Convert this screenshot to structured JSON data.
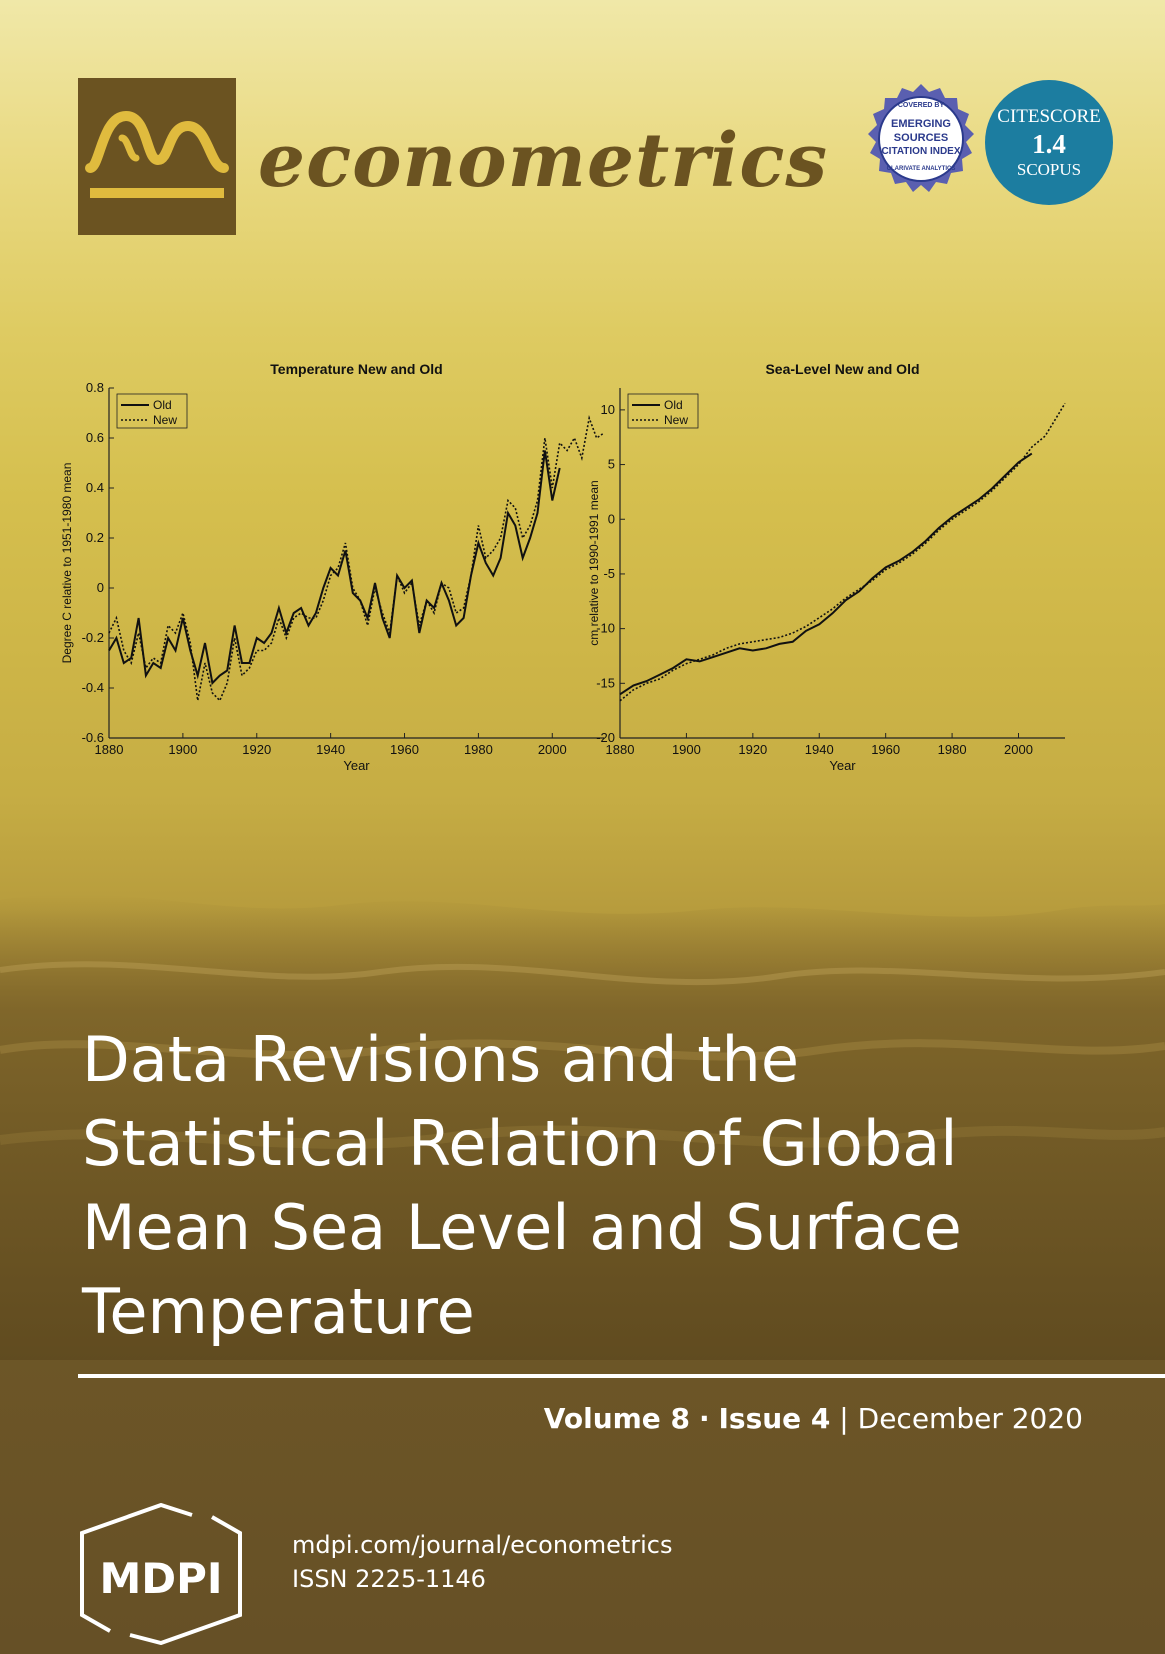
{
  "journal": {
    "name": "econometrics"
  },
  "badges": {
    "esci": {
      "top": "COVERED BY",
      "line1": "EMERGING",
      "line2": "SOURCES",
      "line3": "CITATION INDEX",
      "bottom": "CLARIVATE ANALYTICS"
    },
    "citescore": {
      "label": "CITESCORE",
      "value": "1.4",
      "source": "SCOPUS"
    }
  },
  "chart_data": [
    {
      "type": "line",
      "title": "Temperature New and Old",
      "xlabel": "Year",
      "ylabel": "Degree C relative to 1951-1980 mean",
      "xlim": [
        1880,
        2014
      ],
      "ylim": [
        -0.6,
        0.8
      ],
      "xticks": [
        1880,
        1900,
        1920,
        1940,
        1960,
        1980,
        2000
      ],
      "yticks": [
        -0.6,
        -0.4,
        -0.2,
        0,
        0.2,
        0.4,
        0.6,
        0.8
      ],
      "legend": "top-left",
      "series": [
        {
          "name": "Old",
          "style": "solid",
          "x": [
            1880,
            1882,
            1884,
            1886,
            1888,
            1890,
            1892,
            1894,
            1896,
            1898,
            1900,
            1902,
            1904,
            1906,
            1908,
            1910,
            1912,
            1914,
            1916,
            1918,
            1920,
            1922,
            1924,
            1926,
            1928,
            1930,
            1932,
            1934,
            1936,
            1938,
            1940,
            1942,
            1944,
            1946,
            1948,
            1950,
            1952,
            1954,
            1956,
            1958,
            1960,
            1962,
            1964,
            1966,
            1968,
            1970,
            1972,
            1974,
            1976,
            1978,
            1980,
            1982,
            1984,
            1986,
            1988,
            1990,
            1992,
            1994,
            1996,
            1998,
            2000,
            2002
          ],
          "y": [
            -0.25,
            -0.2,
            -0.3,
            -0.28,
            -0.12,
            -0.35,
            -0.3,
            -0.32,
            -0.2,
            -0.25,
            -0.12,
            -0.25,
            -0.35,
            -0.22,
            -0.38,
            -0.35,
            -0.33,
            -0.15,
            -0.3,
            -0.3,
            -0.2,
            -0.22,
            -0.18,
            -0.08,
            -0.18,
            -0.1,
            -0.08,
            -0.15,
            -0.1,
            0.0,
            0.08,
            0.05,
            0.15,
            -0.02,
            -0.05,
            -0.12,
            0.02,
            -0.12,
            -0.2,
            0.05,
            0.0,
            0.03,
            -0.18,
            -0.05,
            -0.08,
            0.02,
            -0.05,
            -0.15,
            -0.12,
            0.05,
            0.18,
            0.1,
            0.05,
            0.12,
            0.3,
            0.25,
            0.12,
            0.2,
            0.3,
            0.55,
            0.35,
            0.48
          ]
        },
        {
          "name": "New",
          "style": "dotted",
          "x": [
            1880,
            1882,
            1884,
            1886,
            1888,
            1890,
            1892,
            1894,
            1896,
            1898,
            1900,
            1902,
            1904,
            1906,
            1908,
            1910,
            1912,
            1914,
            1916,
            1918,
            1920,
            1922,
            1924,
            1926,
            1928,
            1930,
            1932,
            1934,
            1936,
            1938,
            1940,
            1942,
            1944,
            1946,
            1948,
            1950,
            1952,
            1954,
            1956,
            1958,
            1960,
            1962,
            1964,
            1966,
            1968,
            1970,
            1972,
            1974,
            1976,
            1978,
            1980,
            1982,
            1984,
            1986,
            1988,
            1990,
            1992,
            1994,
            1996,
            1998,
            2000,
            2002,
            2004,
            2006,
            2008,
            2010,
            2012,
            2014
          ],
          "y": [
            -0.18,
            -0.12,
            -0.25,
            -0.3,
            -0.18,
            -0.32,
            -0.28,
            -0.3,
            -0.15,
            -0.18,
            -0.1,
            -0.22,
            -0.45,
            -0.3,
            -0.42,
            -0.45,
            -0.38,
            -0.2,
            -0.35,
            -0.32,
            -0.25,
            -0.25,
            -0.22,
            -0.12,
            -0.2,
            -0.12,
            -0.1,
            -0.12,
            -0.12,
            -0.05,
            0.05,
            0.08,
            0.18,
            0.0,
            -0.05,
            -0.15,
            0.0,
            -0.1,
            -0.18,
            0.05,
            -0.02,
            0.02,
            -0.15,
            -0.05,
            -0.1,
            0.02,
            0.0,
            -0.1,
            -0.08,
            0.05,
            0.25,
            0.12,
            0.15,
            0.2,
            0.35,
            0.32,
            0.2,
            0.25,
            0.35,
            0.6,
            0.4,
            0.58,
            0.55,
            0.6,
            0.52,
            0.68,
            0.6,
            0.62
          ]
        }
      ]
    },
    {
      "type": "line",
      "title": "Sea-Level New and Old",
      "xlabel": "Year",
      "ylabel": "cm relative to 1990-1991 mean",
      "xlim": [
        1880,
        2014
      ],
      "ylim": [
        -20,
        12
      ],
      "xticks": [
        1880,
        1900,
        1920,
        1940,
        1960,
        1980,
        2000
      ],
      "yticks": [
        -20,
        -15,
        -10,
        -5,
        0,
        5,
        10
      ],
      "legend": "top-left",
      "series": [
        {
          "name": "Old",
          "style": "solid",
          "x": [
            1880,
            1884,
            1888,
            1892,
            1896,
            1900,
            1904,
            1908,
            1912,
            1916,
            1920,
            1924,
            1928,
            1932,
            1936,
            1940,
            1944,
            1948,
            1952,
            1956,
            1960,
            1964,
            1968,
            1972,
            1976,
            1980,
            1984,
            1988,
            1992,
            1996,
            2000,
            2004
          ],
          "y": [
            -16.0,
            -15.2,
            -14.8,
            -14.2,
            -13.6,
            -12.8,
            -13.0,
            -12.6,
            -12.2,
            -11.8,
            -12.0,
            -11.8,
            -11.4,
            -11.2,
            -10.2,
            -9.6,
            -8.6,
            -7.4,
            -6.6,
            -5.4,
            -4.4,
            -3.8,
            -3.0,
            -2.0,
            -0.8,
            0.2,
            1.0,
            1.8,
            2.8,
            4.0,
            5.2,
            6.0
          ]
        },
        {
          "name": "New",
          "style": "dotted",
          "x": [
            1880,
            1884,
            1888,
            1892,
            1896,
            1900,
            1904,
            1908,
            1912,
            1916,
            1920,
            1924,
            1928,
            1932,
            1936,
            1940,
            1944,
            1948,
            1952,
            1956,
            1960,
            1964,
            1968,
            1972,
            1976,
            1980,
            1984,
            1988,
            1992,
            1996,
            2000,
            2004,
            2008,
            2012,
            2014
          ],
          "y": [
            -16.6,
            -15.6,
            -15.0,
            -14.6,
            -13.8,
            -13.2,
            -12.8,
            -12.4,
            -11.8,
            -11.4,
            -11.2,
            -11.0,
            -10.8,
            -10.4,
            -9.8,
            -9.0,
            -8.2,
            -7.2,
            -6.4,
            -5.6,
            -4.6,
            -4.0,
            -3.2,
            -2.2,
            -1.0,
            0.0,
            0.8,
            1.6,
            2.6,
            3.8,
            5.0,
            6.6,
            7.6,
            9.6,
            10.6
          ]
        }
      ]
    }
  ],
  "article": {
    "title_lines": [
      "Data Revisions and the",
      "Statistical Relation of Global",
      "Mean Sea Level and Surface",
      "Temperature"
    ]
  },
  "issue": {
    "volume": "Volume 8",
    "sep": "·",
    "issue": "Issue 4",
    "bar": "|",
    "date": "December 2020"
  },
  "publisher": {
    "logo_text": "MDPI",
    "url": "mdpi.com/journal/econometrics",
    "issn": "ISSN 2225-1146"
  }
}
